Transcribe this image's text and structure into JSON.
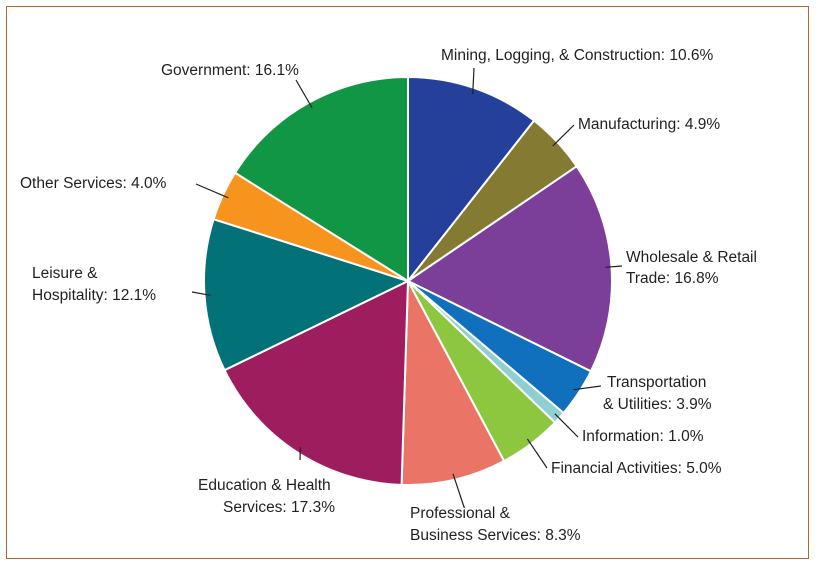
{
  "chart_data": {
    "type": "pie",
    "title": "",
    "start_angle_deg": 0,
    "direction": "clockwise",
    "slices": [
      {
        "name": "Mining, Logging, & Construction",
        "value": 10.6,
        "label_lines": [
          "Mining, Logging, & Construction: 10.6%"
        ],
        "color": "#25409a"
      },
      {
        "name": "Manufacturing",
        "value": 4.9,
        "label_lines": [
          "Manufacturing: 4.9%"
        ],
        "color": "#857a31"
      },
      {
        "name": "Wholesale & Retail Trade",
        "value": 16.8,
        "label_lines": [
          "Wholesale & Retail",
          "Trade: 16.8%"
        ],
        "color": "#7b3f99"
      },
      {
        "name": "Transportation & Utilities",
        "value": 3.9,
        "label_lines": [
          "Transportation",
          "& Utilities: 3.9%"
        ],
        "color": "#1170bd"
      },
      {
        "name": "Information",
        "value": 1.0,
        "label_lines": [
          "Information: 1.0%"
        ],
        "color": "#8fcfd2"
      },
      {
        "name": "Financial Activities",
        "value": 5.0,
        "label_lines": [
          "Financial Activities: 5.0%"
        ],
        "color": "#8dc63f"
      },
      {
        "name": "Professional & Business Services",
        "value": 8.3,
        "label_lines": [
          "Professional &",
          "Business Services: 8.3%"
        ],
        "color": "#ea7566"
      },
      {
        "name": "Education & Health Services",
        "value": 17.3,
        "label_lines": [
          "Education & Health",
          "Services: 17.3%"
        ],
        "color": "#9e1d5f"
      },
      {
        "name": "Leisure & Hospitality",
        "value": 12.1,
        "label_lines": [
          "Leisure &",
          "Hospitality: 12.1%"
        ],
        "color": "#037178"
      },
      {
        "name": "Other Services",
        "value": 4.0,
        "label_lines": [
          "Other Services: 4.0%"
        ],
        "color": "#f7941d"
      },
      {
        "name": "Government",
        "value": 16.1,
        "label_lines": [
          "Government: 16.1%"
        ],
        "color": "#119646"
      }
    ]
  }
}
